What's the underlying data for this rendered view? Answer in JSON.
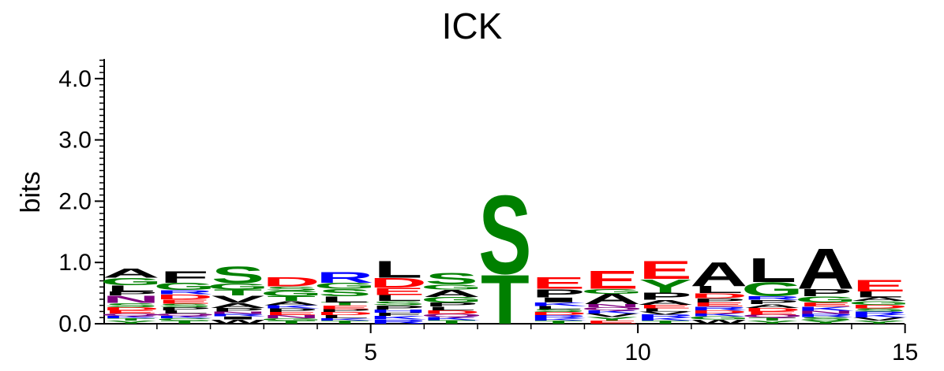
{
  "chart_data": {
    "type": "sequence-logo",
    "title": "ICK",
    "ylabel": "bits",
    "ylim": [
      0,
      4.32
    ],
    "yticks": [
      {
        "value": 0.0,
        "label": "0.0"
      },
      {
        "value": 1.0,
        "label": "1.0"
      },
      {
        "value": 2.0,
        "label": "2.0"
      },
      {
        "value": 3.0,
        "label": "3.0"
      },
      {
        "value": 4.0,
        "label": "4.0"
      }
    ],
    "xticks": [
      {
        "value": 5,
        "label": "5"
      },
      {
        "value": 10,
        "label": "10"
      },
      {
        "value": 15,
        "label": "15"
      }
    ],
    "colors": {
      "A": "#000000",
      "F": "#000000",
      "I": "#000000",
      "L": "#000000",
      "M": "#000000",
      "P": "#000000",
      "V": "#000000",
      "W": "#000000",
      "G": "#008000",
      "S": "#008000",
      "T": "#008000",
      "Y": "#008000",
      "C": "#008000",
      "D": "#ff0000",
      "E": "#ff0000",
      "K": "#0000ff",
      "R": "#0000ff",
      "H": "#0000ff",
      "N": "#800080",
      "Q": "#800080"
    },
    "positions": [
      {
        "pos": 1,
        "letters": [
          [
            "Y",
            0.05
          ],
          [
            "T",
            0.04
          ],
          [
            "K",
            0.04
          ],
          [
            "Q",
            0.04
          ],
          [
            "E",
            0.05
          ],
          [
            "D",
            0.05
          ],
          [
            "S",
            0.07
          ],
          [
            "N",
            0.12
          ],
          [
            "P",
            0.07
          ],
          [
            "L",
            0.1
          ],
          [
            "G",
            0.12
          ],
          [
            "A",
            0.15
          ]
        ]
      },
      {
        "pos": 2,
        "letters": [
          [
            "T",
            0.05
          ],
          [
            "C",
            0.04
          ],
          [
            "K",
            0.04
          ],
          [
            "Q",
            0.04
          ],
          [
            "L",
            0.05
          ],
          [
            "P",
            0.05
          ],
          [
            "S",
            0.06
          ],
          [
            "E",
            0.07
          ],
          [
            "D",
            0.08
          ],
          [
            "R",
            0.07
          ],
          [
            "G",
            0.12
          ],
          [
            "F",
            0.2
          ]
        ]
      },
      {
        "pos": 3,
        "letters": [
          [
            "W",
            0.07
          ],
          [
            "I",
            0.05
          ],
          [
            "R",
            0.04
          ],
          [
            "N",
            0.04
          ],
          [
            "P",
            0.06
          ],
          [
            "A",
            0.08
          ],
          [
            "V",
            0.12
          ],
          [
            "T",
            0.1
          ],
          [
            "G",
            0.1
          ],
          [
            "S",
            0.28
          ]
        ]
      },
      {
        "pos": 4,
        "letters": [
          [
            "T",
            0.05
          ],
          [
            "G",
            0.04
          ],
          [
            "N",
            0.05
          ],
          [
            "E",
            0.05
          ],
          [
            "P",
            0.06
          ],
          [
            "K",
            0.05
          ],
          [
            "A",
            0.07
          ],
          [
            "T",
            0.08
          ],
          [
            "G",
            0.09
          ],
          [
            "S",
            0.07
          ],
          [
            "D",
            0.15
          ]
        ]
      },
      {
        "pos": 5,
        "letters": [
          [
            "T",
            0.05
          ],
          [
            "K",
            0.04
          ],
          [
            "L",
            0.05
          ],
          [
            "D",
            0.05
          ],
          [
            "P",
            0.05
          ],
          [
            "E",
            0.06
          ],
          [
            "T",
            0.05
          ],
          [
            "L",
            0.1
          ],
          [
            "S",
            0.12
          ],
          [
            "G",
            0.1
          ],
          [
            "R",
            0.18
          ]
        ]
      },
      {
        "pos": 6,
        "letters": [
          [
            "R",
            0.07
          ],
          [
            "K",
            0.06
          ],
          [
            "F",
            0.05
          ],
          [
            "H",
            0.05
          ],
          [
            "P",
            0.07
          ],
          [
            "S",
            0.07
          ],
          [
            "L",
            0.1
          ],
          [
            "E",
            0.12
          ],
          [
            "D",
            0.16
          ],
          [
            "L",
            0.28
          ]
        ]
      },
      {
        "pos": 7,
        "letters": [
          [
            "T",
            0.06
          ],
          [
            "K",
            0.05
          ],
          [
            "Q",
            0.05
          ],
          [
            "D",
            0.06
          ],
          [
            "L",
            0.06
          ],
          [
            "P",
            0.07
          ],
          [
            "G",
            0.09
          ],
          [
            "A",
            0.12
          ],
          [
            "G",
            0.08
          ],
          [
            "S",
            0.2
          ]
        ]
      },
      {
        "pos": 8,
        "letters": [
          [
            "T",
            0.82
          ],
          [
            "S",
            1.32
          ]
        ]
      },
      {
        "pos": 9,
        "letters": [
          [
            "T",
            0.05
          ],
          [
            "K",
            0.04
          ],
          [
            "R",
            0.05
          ],
          [
            "D",
            0.05
          ],
          [
            "S",
            0.05
          ],
          [
            "L",
            0.05
          ],
          [
            "K",
            0.06
          ],
          [
            "I",
            0.08
          ],
          [
            "P",
            0.14
          ],
          [
            "E",
            0.2
          ]
        ]
      },
      {
        "pos": 10,
        "letters": [
          [
            "E",
            0.05
          ],
          [
            "Y",
            0.06
          ],
          [
            "V",
            0.06
          ],
          [
            "K",
            0.05
          ],
          [
            "Q",
            0.05
          ],
          [
            "N",
            0.05
          ],
          [
            "A",
            0.17
          ],
          [
            "G",
            0.08
          ],
          [
            "E",
            0.3
          ]
        ]
      },
      {
        "pos": 11,
        "letters": [
          [
            "T",
            0.05
          ],
          [
            "K",
            0.05
          ],
          [
            "R",
            0.05
          ],
          [
            "V",
            0.05
          ],
          [
            "L",
            0.05
          ],
          [
            "E",
            0.06
          ],
          [
            "A",
            0.08
          ],
          [
            "P",
            0.12
          ],
          [
            "Y",
            0.22
          ],
          [
            "E",
            0.3
          ]
        ]
      },
      {
        "pos": 12,
        "letters": [
          [
            "W",
            0.07
          ],
          [
            "G",
            0.05
          ],
          [
            "K",
            0.05
          ],
          [
            "D",
            0.05
          ],
          [
            "R",
            0.06
          ],
          [
            "E",
            0.07
          ],
          [
            "P",
            0.07
          ],
          [
            "D",
            0.08
          ],
          [
            "L",
            0.12
          ],
          [
            "A",
            0.4
          ]
        ]
      },
      {
        "pos": 13,
        "letters": [
          [
            "Y",
            0.05
          ],
          [
            "T",
            0.05
          ],
          [
            "Q",
            0.05
          ],
          [
            "E",
            0.05
          ],
          [
            "D",
            0.06
          ],
          [
            "A",
            0.06
          ],
          [
            "P",
            0.07
          ],
          [
            "R",
            0.06
          ],
          [
            "G",
            0.23
          ],
          [
            "L",
            0.4
          ]
        ]
      },
      {
        "pos": 14,
        "letters": [
          [
            "Y",
            0.06
          ],
          [
            "S",
            0.05
          ],
          [
            "R",
            0.05
          ],
          [
            "N",
            0.05
          ],
          [
            "K",
            0.07
          ],
          [
            "E",
            0.07
          ],
          [
            "G",
            0.1
          ],
          [
            "P",
            0.12
          ],
          [
            "A",
            0.68
          ]
        ]
      },
      {
        "pos": 15,
        "letters": [
          [
            "Y",
            0.05
          ],
          [
            "V",
            0.05
          ],
          [
            "K",
            0.05
          ],
          [
            "R",
            0.05
          ],
          [
            "S",
            0.05
          ],
          [
            "D",
            0.06
          ],
          [
            "G",
            0.06
          ],
          [
            "A",
            0.06
          ],
          [
            "L",
            0.1
          ],
          [
            "E",
            0.2
          ]
        ]
      }
    ]
  }
}
